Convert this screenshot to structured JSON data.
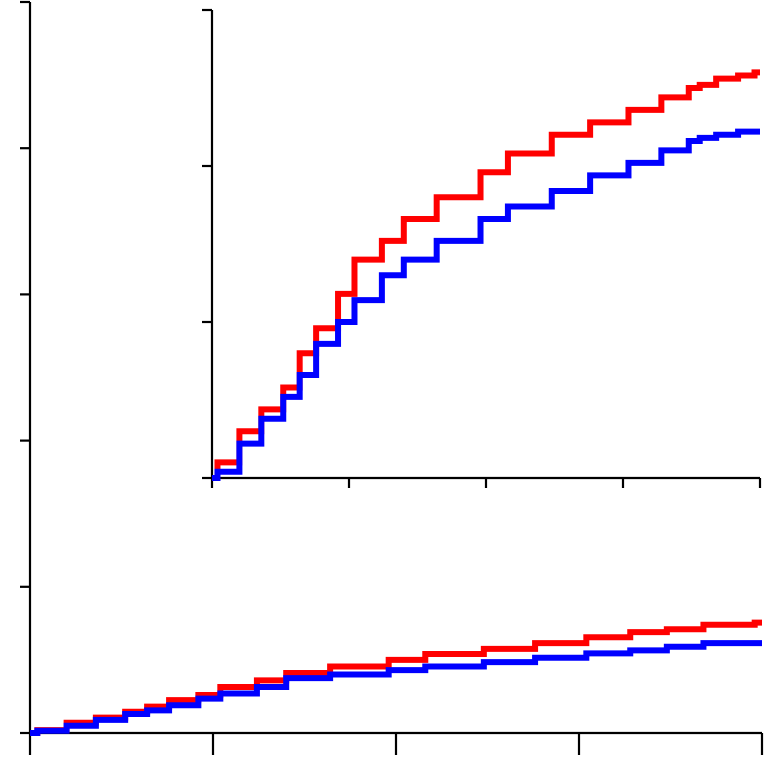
{
  "chart_data": [
    {
      "panel": "main",
      "type": "line",
      "step": true,
      "title": "",
      "xlabel": "",
      "ylabel": "",
      "xlim": [
        0,
        100
      ],
      "ylim": [
        0,
        100
      ],
      "xticks": [
        0,
        25,
        50,
        75,
        100
      ],
      "yticks": [
        0,
        20,
        40,
        60,
        80,
        100
      ],
      "tick_labels_shown": false,
      "grid": false,
      "legend": "none",
      "series": [
        {
          "color": "#ff0000",
          "x": [
            0,
            1,
            5,
            9,
            13,
            16,
            19,
            23,
            26,
            31,
            35,
            41,
            49,
            54,
            62,
            69,
            76,
            82,
            87,
            89,
            92,
            96,
            99,
            100
          ],
          "y": [
            0,
            0.4,
            1.4,
            2.1,
            2.9,
            3.6,
            4.5,
            5.2,
            6.3,
            7.2,
            8.2,
            9.1,
            10.0,
            10.8,
            11.5,
            12.3,
            13.1,
            13.8,
            14.2,
            14.2,
            14.8,
            14.8,
            15.1,
            15.1
          ]
        },
        {
          "color": "#0000ff",
          "x": [
            0,
            1,
            5,
            9,
            13,
            16,
            19,
            23,
            26,
            31,
            35,
            41,
            49,
            54,
            62,
            69,
            76,
            82,
            87,
            89,
            92,
            96,
            99,
            100
          ],
          "y": [
            0,
            0.3,
            1.0,
            1.8,
            2.6,
            3.1,
            3.8,
            4.7,
            5.4,
            6.3,
            7.5,
            8.0,
            8.6,
            9.1,
            9.7,
            10.3,
            10.9,
            11.3,
            11.8,
            11.8,
            12.3,
            12.3,
            12.3,
            12.3
          ]
        }
      ]
    },
    {
      "panel": "inset",
      "type": "line",
      "step": true,
      "title": "",
      "xlabel": "",
      "ylabel": "",
      "xlim": [
        0,
        100
      ],
      "ylim": [
        0,
        15
      ],
      "xticks": [
        0,
        25,
        50,
        75,
        100
      ],
      "yticks": [
        0,
        5,
        10,
        15
      ],
      "tick_labels_shown": false,
      "grid": false,
      "legend": "none",
      "series": [
        {
          "color": "#ff0000",
          "x": [
            0,
            1,
            5,
            9,
            13,
            16,
            19,
            23,
            26,
            31,
            35,
            41,
            49,
            54,
            62,
            69,
            76,
            82,
            87,
            89,
            92,
            96,
            99,
            100
          ],
          "y": [
            0,
            0.5,
            1.5,
            2.2,
            2.9,
            4.0,
            4.8,
            5.9,
            7.0,
            7.6,
            8.3,
            9.0,
            9.8,
            10.4,
            11.0,
            11.4,
            11.8,
            12.2,
            12.5,
            12.6,
            12.8,
            12.9,
            13.0,
            13.0
          ]
        },
        {
          "color": "#0000ff",
          "x": [
            0,
            1,
            5,
            9,
            13,
            16,
            19,
            23,
            26,
            31,
            35,
            41,
            49,
            54,
            62,
            69,
            76,
            82,
            87,
            89,
            92,
            96,
            99,
            100
          ],
          "y": [
            0,
            0.2,
            1.1,
            1.9,
            2.6,
            3.3,
            4.3,
            5.0,
            5.7,
            6.5,
            7.0,
            7.6,
            8.3,
            8.7,
            9.2,
            9.7,
            10.1,
            10.5,
            10.8,
            10.9,
            11.0,
            11.1,
            11.1,
            11.1
          ]
        }
      ]
    }
  ]
}
